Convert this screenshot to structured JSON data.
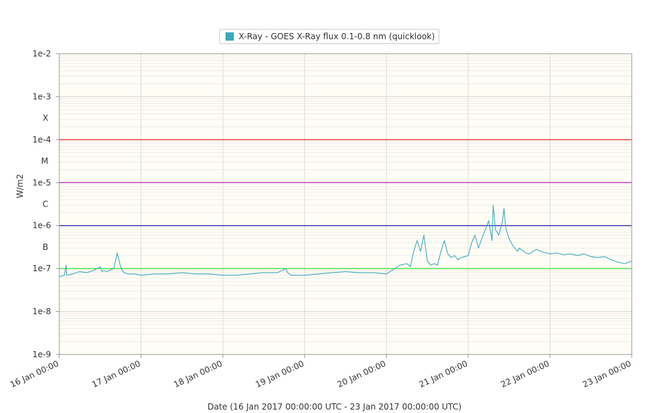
{
  "legend": {
    "label": "X-Ray - GOES X-Ray flux 0.1-0.8 nm (quicklook)",
    "color": "#3ea9bd"
  },
  "chart_data": {
    "type": "line",
    "title": "",
    "xlabel": "Date (16 Jan 2017 00:00:00 UTC - 23 Jan 2017 00:00:00 UTC)",
    "ylabel": "W/m2",
    "y_scale": "log",
    "ylim": [
      1e-09,
      0.01
    ],
    "xlim": [
      "2017-01-16 00:00",
      "2017-01-23 00:00"
    ],
    "x_ticks": [
      "16 Jan 00:00",
      "17 Jan 00:00",
      "18 Jan 00:00",
      "19 Jan 00:00",
      "20 Jan 00:00",
      "21 Jan 00:00",
      "22 Jan 00:00",
      "23 Jan 00:00"
    ],
    "y_ticks": [
      {
        "value": 1e-09,
        "label": "1e-9"
      },
      {
        "value": 1e-08,
        "label": "1e-8"
      },
      {
        "value": 1e-07,
        "label": "1e-7"
      },
      {
        "value": 1e-06,
        "label": "1e-6"
      },
      {
        "value": 1e-05,
        "label": "1e-5"
      },
      {
        "value": 0.0001,
        "label": "1e-4"
      },
      {
        "value": 0.001,
        "label": "1e-3"
      },
      {
        "value": 0.01,
        "label": "1e-2"
      }
    ],
    "class_labels": [
      {
        "label": "B",
        "value": 3.16e-07
      },
      {
        "label": "C",
        "value": 3.16e-06
      },
      {
        "label": "M",
        "value": 3.16e-05
      },
      {
        "label": "X",
        "value": 0.000316
      }
    ],
    "thresholds": [
      {
        "value": 1e-07,
        "color": "#33dd33"
      },
      {
        "value": 1e-06,
        "color": "#2222aa"
      },
      {
        "value": 1e-05,
        "color": "#bb22bb"
      },
      {
        "value": 0.0001,
        "color": "#ee2222"
      }
    ],
    "grid": true,
    "legend_position": "top-center",
    "series": [
      {
        "name": "X-Ray - GOES X-Ray flux 0.1-0.8 nm (quicklook)",
        "color": "#3ea9bd",
        "x": [
          "2017-01-16 00:00",
          "2017-01-16 01:30",
          "2017-01-16 02:00",
          "2017-01-16 02:10",
          "2017-01-16 04:00",
          "2017-01-16 06:00",
          "2017-01-16 08:00",
          "2017-01-16 10:00",
          "2017-01-16 12:00",
          "2017-01-16 12:30",
          "2017-01-16 13:00",
          "2017-01-16 14:00",
          "2017-01-16 16:00",
          "2017-01-16 17:00",
          "2017-01-16 18:00",
          "2017-01-16 18:30",
          "2017-01-16 19:00",
          "2017-01-16 20:00",
          "2017-01-16 22:00",
          "2017-01-17 00:00",
          "2017-01-17 04:00",
          "2017-01-17 08:00",
          "2017-01-17 12:00",
          "2017-01-17 16:00",
          "2017-01-17 20:00",
          "2017-01-18 00:00",
          "2017-01-18 04:00",
          "2017-01-18 08:00",
          "2017-01-18 12:00",
          "2017-01-18 16:00",
          "2017-01-18 18:30",
          "2017-01-18 19:00",
          "2017-01-18 20:00",
          "2017-01-19 00:00",
          "2017-01-19 04:00",
          "2017-01-19 08:00",
          "2017-01-19 12:00",
          "2017-01-19 16:00",
          "2017-01-19 20:00",
          "2017-01-20 00:00",
          "2017-01-20 02:00",
          "2017-01-20 04:00",
          "2017-01-20 06:00",
          "2017-01-20 07:00",
          "2017-01-20 08:00",
          "2017-01-20 09:00",
          "2017-01-20 10:00",
          "2017-01-20 11:00",
          "2017-01-20 12:00",
          "2017-01-20 13:00",
          "2017-01-20 14:00",
          "2017-01-20 15:00",
          "2017-01-20 16:00",
          "2017-01-20 17:00",
          "2017-01-20 18:00",
          "2017-01-20 19:00",
          "2017-01-20 20:00",
          "2017-01-20 21:00",
          "2017-01-20 22:00",
          "2017-01-21 00:00",
          "2017-01-21 01:00",
          "2017-01-21 02:00",
          "2017-01-21 03:00",
          "2017-01-21 04:00",
          "2017-01-21 05:00",
          "2017-01-21 06:00",
          "2017-01-21 07:00",
          "2017-01-21 07:20",
          "2017-01-21 08:00",
          "2017-01-21 09:00",
          "2017-01-21 10:00",
          "2017-01-21 10:30",
          "2017-01-21 11:00",
          "2017-01-21 12:00",
          "2017-01-21 13:00",
          "2017-01-21 14:00",
          "2017-01-21 14:30",
          "2017-01-21 15:00",
          "2017-01-21 16:00",
          "2017-01-21 17:00",
          "2017-01-21 18:00",
          "2017-01-21 20:00",
          "2017-01-21 22:00",
          "2017-01-22 00:00",
          "2017-01-22 02:00",
          "2017-01-22 04:00",
          "2017-01-22 06:00",
          "2017-01-22 08:00",
          "2017-01-22 10:00",
          "2017-01-22 12:00",
          "2017-01-22 14:00",
          "2017-01-22 16:00",
          "2017-01-22 18:00",
          "2017-01-22 20:00",
          "2017-01-22 22:00",
          "2017-01-23 00:00"
        ],
        "values": [
          6.5e-08,
          7e-08,
          1.2e-07,
          7e-08,
          7.5e-08,
          8.5e-08,
          8e-08,
          9e-08,
          1.1e-07,
          8.5e-08,
          9e-08,
          8.5e-08,
          1e-07,
          2.3e-07,
          1.1e-07,
          9e-08,
          8e-08,
          7.5e-08,
          7.5e-08,
          7e-08,
          7.5e-08,
          7.5e-08,
          8e-08,
          7.5e-08,
          7.5e-08,
          7e-08,
          7e-08,
          7.5e-08,
          8e-08,
          8e-08,
          1e-07,
          8e-08,
          7e-08,
          7e-08,
          7.5e-08,
          8e-08,
          8.5e-08,
          8e-08,
          8e-08,
          7.5e-08,
          9.5e-08,
          1.2e-07,
          1.3e-07,
          1.1e-07,
          2.5e-07,
          4.5e-07,
          2.5e-07,
          6e-07,
          1.5e-07,
          1.2e-07,
          1.3e-07,
          1.2e-07,
          2.5e-07,
          4.5e-07,
          2.2e-07,
          1.8e-07,
          2e-07,
          1.6e-07,
          1.8e-07,
          2e-07,
          4e-07,
          6e-07,
          3e-07,
          5e-07,
          8e-07,
          1.3e-06,
          4.5e-07,
          3e-06,
          8e-07,
          6e-07,
          1.2e-06,
          2.5e-06,
          9e-07,
          5e-07,
          3.5e-07,
          2.8e-07,
          2.5e-07,
          3e-07,
          2.6e-07,
          2.3e-07,
          2.2e-07,
          2.8e-07,
          2.4e-07,
          2.2e-07,
          2.3e-07,
          2.1e-07,
          2.2e-07,
          2e-07,
          2.2e-07,
          1.9e-07,
          1.8e-07,
          1.9e-07,
          1.6e-07,
          1.4e-07,
          1.3e-07,
          1.5e-07
        ]
      }
    ]
  }
}
